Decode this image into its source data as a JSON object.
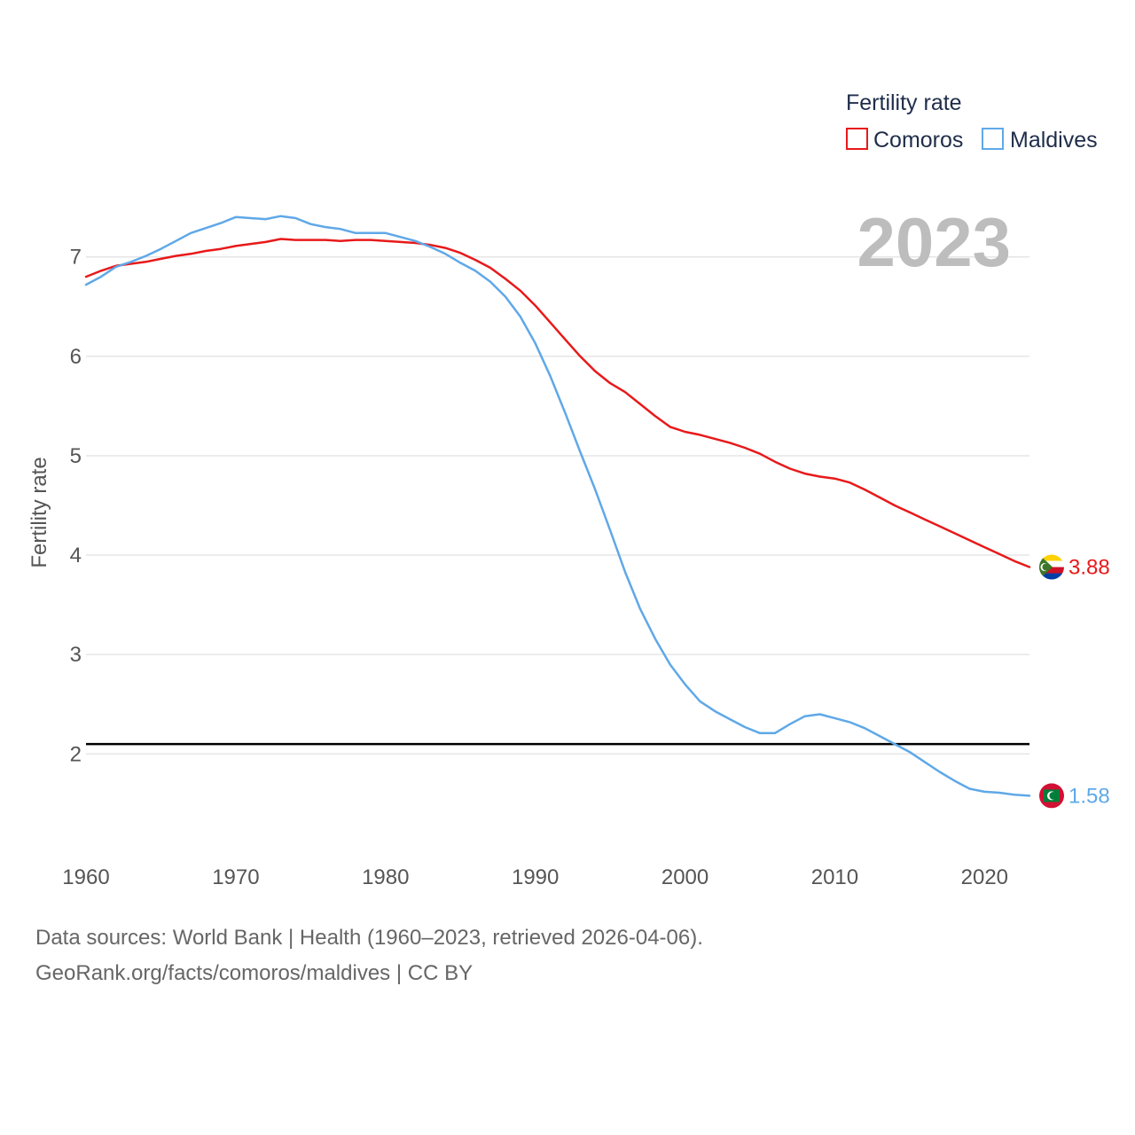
{
  "chart_data": {
    "type": "line",
    "title": "",
    "year_display": "2023",
    "xlabel": "",
    "ylabel": "Fertility rate",
    "xlim": [
      1960,
      2023
    ],
    "ylim": [
      1.2,
      7.8
    ],
    "x_ticks": [
      1960,
      1970,
      1980,
      1990,
      2000,
      2010,
      2020
    ],
    "y_ticks": [
      2,
      3,
      4,
      5,
      6,
      7
    ],
    "grid": true,
    "reference_line": {
      "value": 2.1,
      "color": "#000000"
    },
    "legend": {
      "title": "Fertility rate",
      "placement": "top-right"
    },
    "x": [
      1960,
      1961,
      1962,
      1963,
      1964,
      1965,
      1966,
      1967,
      1968,
      1969,
      1970,
      1971,
      1972,
      1973,
      1974,
      1975,
      1976,
      1977,
      1978,
      1979,
      1980,
      1981,
      1982,
      1983,
      1984,
      1985,
      1986,
      1987,
      1988,
      1989,
      1990,
      1991,
      1992,
      1993,
      1994,
      1995,
      1996,
      1997,
      1998,
      1999,
      2000,
      2001,
      2002,
      2003,
      2004,
      2005,
      2006,
      2007,
      2008,
      2009,
      2010,
      2011,
      2012,
      2013,
      2014,
      2015,
      2016,
      2017,
      2018,
      2019,
      2020,
      2021,
      2022,
      2023
    ],
    "series": [
      {
        "name": "Comoros",
        "color": "#e8191a",
        "end_label": "3.88",
        "values": [
          6.8,
          6.86,
          6.91,
          6.93,
          6.95,
          6.98,
          7.01,
          7.03,
          7.06,
          7.08,
          7.11,
          7.13,
          7.15,
          7.18,
          7.17,
          7.17,
          7.17,
          7.16,
          7.17,
          7.17,
          7.16,
          7.15,
          7.14,
          7.12,
          7.09,
          7.04,
          6.97,
          6.89,
          6.78,
          6.66,
          6.51,
          6.34,
          6.17,
          6.0,
          5.85,
          5.73,
          5.64,
          5.52,
          5.4,
          5.29,
          5.24,
          5.21,
          5.17,
          5.13,
          5.08,
          5.02,
          4.94,
          4.87,
          4.82,
          4.79,
          4.77,
          4.73,
          4.66,
          4.58,
          4.5,
          4.43,
          4.36,
          4.29,
          4.22,
          4.15,
          4.08,
          4.01,
          3.94,
          3.88
        ]
      },
      {
        "name": "Maldives",
        "color": "#5fa8e8",
        "end_label": "1.58",
        "values": [
          6.72,
          6.8,
          6.9,
          6.95,
          7.01,
          7.08,
          7.16,
          7.24,
          7.29,
          7.34,
          7.4,
          7.39,
          7.38,
          7.41,
          7.39,
          7.33,
          7.3,
          7.28,
          7.24,
          7.24,
          7.24,
          7.2,
          7.16,
          7.1,
          7.03,
          6.94,
          6.86,
          6.75,
          6.6,
          6.4,
          6.13,
          5.8,
          5.43,
          5.04,
          4.66,
          4.25,
          3.83,
          3.46,
          3.16,
          2.9,
          2.7,
          2.53,
          2.43,
          2.35,
          2.27,
          2.21,
          2.21,
          2.3,
          2.38,
          2.4,
          2.36,
          2.32,
          2.26,
          2.18,
          2.1,
          2.02,
          1.92,
          1.82,
          1.73,
          1.65,
          1.62,
          1.61,
          1.59,
          1.58
        ]
      }
    ]
  },
  "footer": {
    "line1": "Data sources: World Bank | Health (1960–2023, retrieved 2026-04-06).",
    "line2": "GeoRank.org/facts/comoros/maldives | CC BY"
  }
}
